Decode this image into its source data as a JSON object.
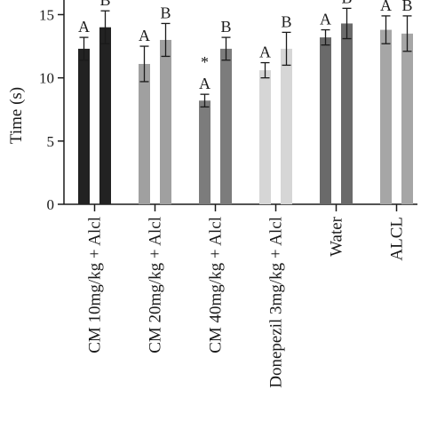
{
  "chart_data": {
    "type": "bar",
    "ylabel": "Time (s)",
    "xlabel": "",
    "ylim": [
      0,
      17
    ],
    "yticks": [
      0,
      5,
      10,
      15
    ],
    "grid": false,
    "legend": "none",
    "categories": [
      "CM 10mg/kg + Alcl",
      "CM 20mg/kg + Alcl",
      "CM 40mg/kg + Alcl",
      "Donepezil 3mg/kg + Alcl",
      "Water",
      "ALCL"
    ],
    "groups": [
      {
        "bars": [
          {
            "value": 12.3,
            "error": 0.9,
            "color": "#222222",
            "label": "A"
          },
          {
            "value": 14.0,
            "error": 1.3,
            "color": "#222222",
            "label": "B"
          }
        ]
      },
      {
        "bars": [
          {
            "value": 11.1,
            "error": 1.4,
            "color": "#a0a0a0",
            "label": "A"
          },
          {
            "value": 13.0,
            "error": 1.3,
            "color": "#a0a0a0",
            "label": "B"
          }
        ]
      },
      {
        "bars": [
          {
            "value": 8.2,
            "error": 0.5,
            "color": "#7c7c7c",
            "label": "A",
            "extra": "*"
          },
          {
            "value": 12.3,
            "error": 0.9,
            "color": "#7c7c7c",
            "label": "B"
          }
        ]
      },
      {
        "bars": [
          {
            "value": 10.6,
            "error": 0.6,
            "color": "#d6d6d6",
            "label": "A"
          },
          {
            "value": 12.3,
            "error": 1.3,
            "color": "#d6d6d6",
            "label": "B"
          }
        ]
      },
      {
        "bars": [
          {
            "value": 13.2,
            "error": 0.6,
            "color": "#6a6a6a",
            "label": "A"
          },
          {
            "value": 14.3,
            "error": 1.2,
            "color": "#6a6a6a",
            "label": "B"
          }
        ]
      },
      {
        "bars": [
          {
            "value": 13.8,
            "error": 1.1,
            "color": "#a6a6a6",
            "label": "A"
          },
          {
            "value": 13.5,
            "error": 1.4,
            "color": "#a6a6a6",
            "label": "B"
          }
        ]
      }
    ]
  }
}
